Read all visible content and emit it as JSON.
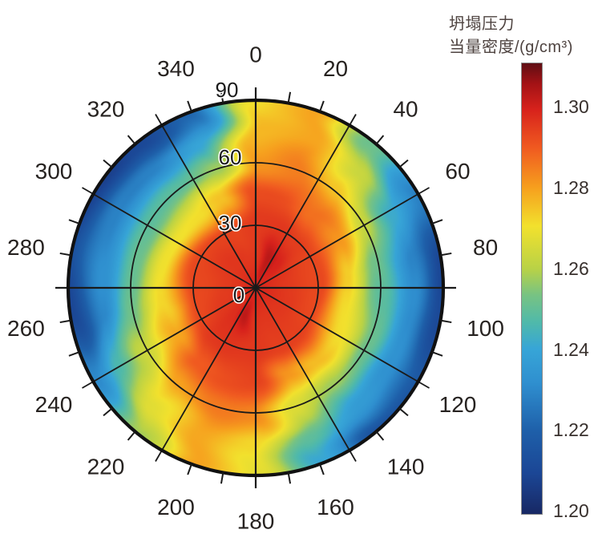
{
  "chart_data": {
    "type": "heatmap",
    "projection": "polar",
    "title": "坍塌压力当量密度/(g/cm³)",
    "units": "g/cm³",
    "colorbar": {
      "label_line1": "坍塌压力",
      "label_line2": "当量密度/(g/cm³)",
      "min": 1.199,
      "max": 1.311,
      "ticks": [
        "1.30",
        "1.28",
        "1.26",
        "1.24",
        "1.22",
        "1.20"
      ],
      "tick_values": [
        1.3,
        1.28,
        1.26,
        1.24,
        1.22,
        1.2
      ]
    },
    "azimuth_axis": {
      "label_step_deg": 20,
      "tick_step_deg": 10,
      "spoke_step_deg": 30,
      "labels": [
        "0",
        "20",
        "40",
        "60",
        "80",
        "100",
        "120",
        "140",
        "160",
        "180",
        "200",
        "220",
        "240",
        "260",
        "280",
        "300",
        "320",
        "340"
      ]
    },
    "radial_axis": {
      "ring_step_deg": 30,
      "labels": [
        "0",
        "30",
        "60",
        "90"
      ]
    },
    "grid": {
      "azimuth_deg": [
        0,
        20,
        40,
        60,
        80,
        100,
        120,
        140,
        160,
        180,
        200,
        220,
        240,
        260,
        280,
        300,
        320,
        340
      ],
      "inclination_deg": [
        0,
        15,
        30,
        45,
        60,
        75,
        90
      ],
      "values": [
        [
          1.2975,
          1.2965,
          1.2955,
          1.2915,
          1.2825,
          1.2765,
          1.269
        ],
        [
          1.2975,
          1.3035,
          1.296,
          1.2925,
          1.2845,
          1.279,
          1.28
        ],
        [
          1.2975,
          1.2995,
          1.294,
          1.287,
          1.274,
          1.263,
          1.251
        ],
        [
          1.2975,
          1.2965,
          1.293,
          1.282,
          1.263,
          1.242,
          1.226
        ],
        [
          1.2975,
          1.296,
          1.293,
          1.273,
          1.252,
          1.229,
          1.209
        ],
        [
          1.2975,
          1.296,
          1.293,
          1.271,
          1.249,
          1.231,
          1.211
        ],
        [
          1.2975,
          1.296,
          1.293,
          1.272,
          1.251,
          1.233,
          1.216
        ],
        [
          1.2975,
          1.296,
          1.2935,
          1.276,
          1.257,
          1.236,
          1.212
        ],
        [
          1.2975,
          1.2965,
          1.2945,
          1.282,
          1.266,
          1.249,
          1.24
        ],
        [
          1.2975,
          1.297,
          1.296,
          1.293,
          1.284,
          1.272,
          1.267
        ],
        [
          1.2975,
          1.303,
          1.296,
          1.293,
          1.285,
          1.279,
          1.2795
        ],
        [
          1.2975,
          1.2975,
          1.295,
          1.29,
          1.279,
          1.267,
          1.257
        ],
        [
          1.2975,
          1.296,
          1.293,
          1.28,
          1.264,
          1.246,
          1.229
        ],
        [
          1.2975,
          1.296,
          1.293,
          1.272,
          1.252,
          1.23,
          1.209
        ],
        [
          1.2975,
          1.296,
          1.293,
          1.27,
          1.251,
          1.232,
          1.213
        ],
        [
          1.2975,
          1.296,
          1.293,
          1.271,
          1.249,
          1.228,
          1.207
        ],
        [
          1.2975,
          1.296,
          1.293,
          1.271,
          1.248,
          1.228,
          1.209
        ],
        [
          1.2975,
          1.296,
          1.2935,
          1.276,
          1.257,
          1.24,
          1.22
        ]
      ]
    },
    "colormap": [
      [
        1.199,
        "#182864"
      ],
      [
        1.209,
        "#1b4695"
      ],
      [
        1.2195,
        "#1e5fa9"
      ],
      [
        1.2315,
        "#2f8fcf"
      ],
      [
        1.24,
        "#37a5d7"
      ],
      [
        1.2465,
        "#4fb9ab"
      ],
      [
        1.2535,
        "#78c382"
      ],
      [
        1.26,
        "#b9d246"
      ],
      [
        1.2705,
        "#f2e12d"
      ],
      [
        1.28,
        "#f6a01e"
      ],
      [
        1.29,
        "#f05a20"
      ],
      [
        1.2995,
        "#d7221c"
      ],
      [
        1.306,
        "#a31215"
      ],
      [
        1.311,
        "#5f0e14"
      ]
    ],
    "grid_line_color": "#1a1a1a",
    "label_color": "#262220"
  }
}
